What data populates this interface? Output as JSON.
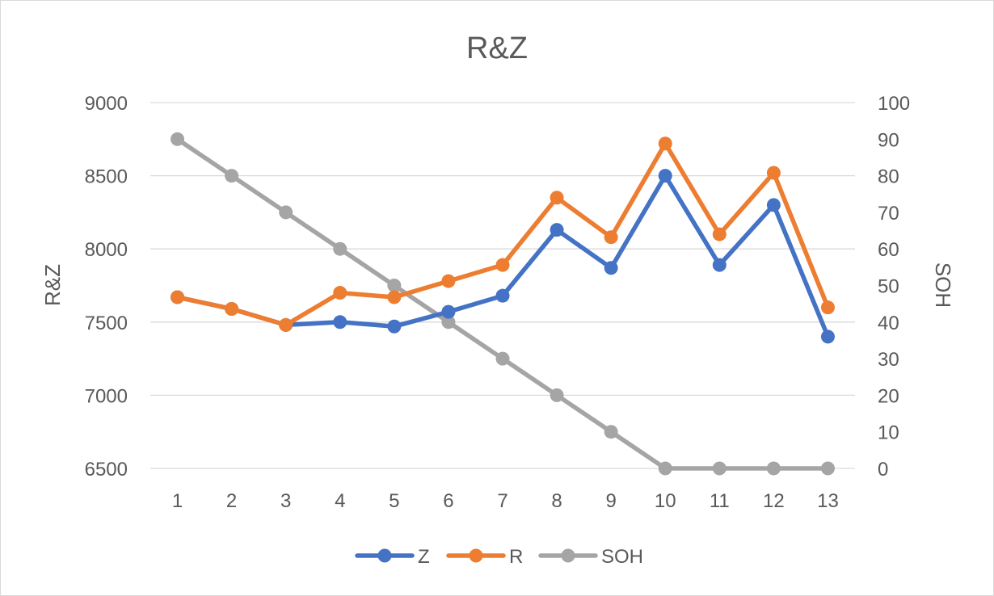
{
  "chart_data": {
    "type": "line",
    "title": "R&Z",
    "xlabel": "",
    "ylabel": "R&Z",
    "y2label": "SOH",
    "categories": [
      "1",
      "2",
      "3",
      "4",
      "5",
      "6",
      "7",
      "8",
      "9",
      "10",
      "11",
      "12",
      "13"
    ],
    "ylim": [
      6500,
      9000
    ],
    "yticks": [
      6500,
      7000,
      7500,
      8000,
      8500,
      9000
    ],
    "y2lim": [
      0,
      100
    ],
    "y2ticks": [
      0,
      10,
      20,
      30,
      40,
      50,
      60,
      70,
      80,
      90,
      100
    ],
    "grid": true,
    "legend_position": "bottom",
    "series": [
      {
        "name": "Z",
        "axis": "left",
        "color": "#4472c4",
        "values": [
          7670,
          7590,
          7480,
          7500,
          7470,
          7570,
          7680,
          8130,
          7870,
          8500,
          7890,
          8300,
          7400
        ]
      },
      {
        "name": "R",
        "axis": "left",
        "color": "#ed7d31",
        "values": [
          7670,
          7590,
          7480,
          7700,
          7670,
          7780,
          7890,
          8350,
          8080,
          8720,
          8100,
          8520,
          7600
        ]
      },
      {
        "name": "SOH",
        "axis": "right",
        "color": "#a5a5a5",
        "values": [
          90,
          80,
          70,
          60,
          50,
          40,
          30,
          20,
          10,
          0,
          0,
          0,
          0
        ]
      }
    ]
  }
}
